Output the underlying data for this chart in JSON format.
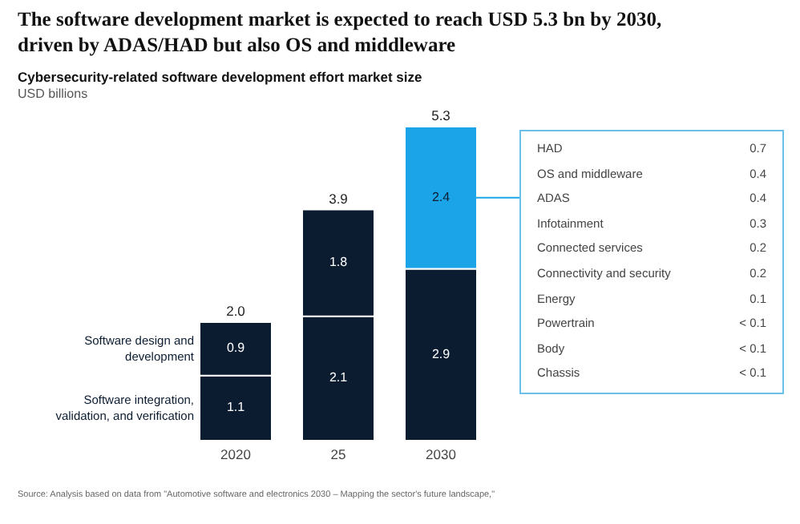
{
  "chart_data": {
    "type": "bar",
    "stacked": true,
    "title": "The software development market is expected to reach USD 5.3 bn by 2030, driven by ADAS/HAD but also OS and middleware",
    "subtitle": "Cybersecurity-related software development effort market size",
    "tick_labels": "x",
    "categories": [
      "2020",
      "25",
      "2030"
    ],
    "series": [
      {
        "name": "Software integration, validation, and verification",
        "color": "#0c1c30",
        "values": [
          1.1,
          2.1,
          2.9
        ]
      },
      {
        "name": "Software design and development",
        "colors": [
          "#0c1c30",
          "#0c1c30",
          "#1ba4e8"
        ],
        "values": [
          0.9,
          1.8,
          2.4
        ]
      }
    ],
    "data_labels": true,
    "totals": [
      "2.0",
      "3.9",
      "5.3"
    ],
    "annotations": [
      "USD billions",
      "HAD",
      "0.7",
      "OS and middleware",
      "0.4",
      "ADAS",
      "0.4",
      "Infotainment",
      "0.3",
      "Connected services",
      "0.2",
      "Connectivity and security",
      "0.2",
      "Energy",
      "0.1",
      "Powertrain",
      "< 0.1",
      "Body",
      "< 0.1",
      "Chassis",
      "< 0.1",
      "Source: Analysis based on data from \"Automotive software and electronics 2030 – Mapping the sector's future landscape,\""
    ]
  }
}
